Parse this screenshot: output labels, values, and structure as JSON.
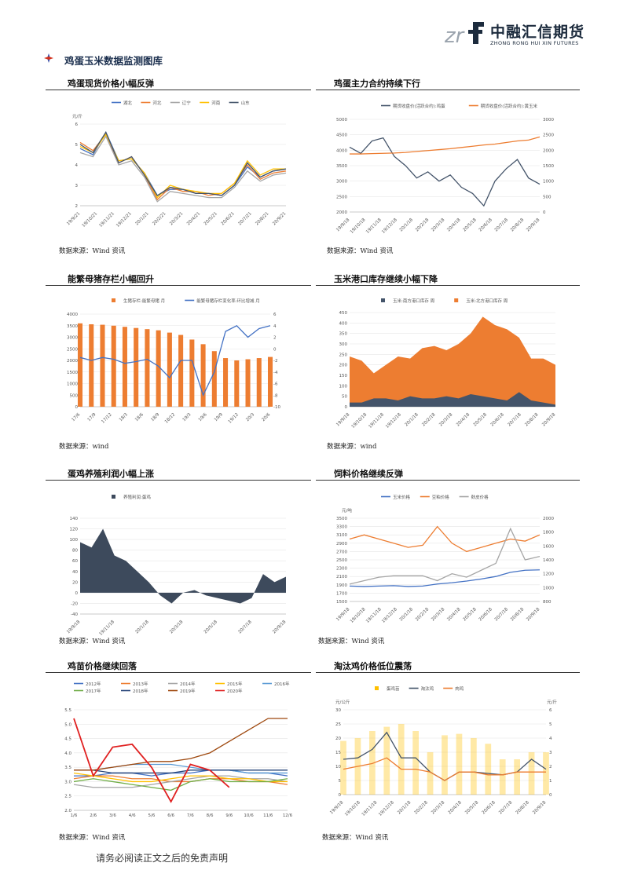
{
  "header": {
    "logo_name": "中融汇信期货",
    "logo_en": "ZHONG RONG HUI XIN FUTURES",
    "logo_icon": "zrf-logo",
    "brand_color": "#1c2b3d"
  },
  "section_title": "鸡蛋玉米数据监测图库",
  "charts": {
    "c1": {
      "title": "鸡蛋现货价格小幅反弹",
      "source": "数据来源：Wind 资讯"
    },
    "c2": {
      "title": "鸡蛋主力合约持续下行",
      "source": "数据来源：Wind 资讯"
    },
    "c3": {
      "title": "能繁母猪存栏小幅回升",
      "source": "数据来源：wind"
    },
    "c4": {
      "title": "玉米港口库存继续小幅下降",
      "source": "数据来源：wind"
    },
    "c5": {
      "title": "蛋鸡养殖利润小幅上涨",
      "source": "数据来源：Wind 资讯"
    },
    "c6": {
      "title": "饲料价格继续反弹",
      "source": "数据来源：Wind 资讯"
    },
    "c7": {
      "title": "鸡苗价格继续回落",
      "source": "数据来源：Wind 资讯"
    },
    "c8": {
      "title": "淘汰鸡价格低位震荡",
      "source": "数据来源：Wind 资讯"
    }
  },
  "footer": "请务必阅读正文之后的免责声明",
  "chart_data": [
    {
      "id": "c1",
      "type": "line",
      "ylabel": "元/斤",
      "ylim": [
        2,
        6
      ],
      "yticks": [
        "2",
        "3",
        "4",
        "5",
        "6"
      ],
      "xticks": [
        "19/9/21",
        "19/10/21",
        "19/11/21",
        "19/12/21",
        "20/1/21",
        "20/2/21",
        "20/3/21",
        "20/4/21",
        "20/5/21",
        "20/6/21",
        "20/7/21",
        "20/8/21",
        "20/9/21"
      ],
      "series": [
        {
          "name": "湖北",
          "color": "#4472c4",
          "values": [
            4.8,
            4.5,
            5.6,
            4.2,
            4.3,
            3.6,
            2.5,
            2.8,
            2.8,
            2.6,
            2.6,
            2.5,
            3.0,
            3.9,
            3.4,
            3.7,
            3.8
          ]
        },
        {
          "name": "河北",
          "color": "#ed7d31",
          "values": [
            5.1,
            4.7,
            5.5,
            4.1,
            4.4,
            3.5,
            2.3,
            2.9,
            2.7,
            2.7,
            2.5,
            2.6,
            3.1,
            4.0,
            3.3,
            3.6,
            3.7
          ]
        },
        {
          "name": "辽宁",
          "color": "#a5a5a5",
          "values": [
            4.6,
            4.4,
            5.4,
            4.0,
            4.2,
            3.4,
            2.2,
            2.7,
            2.6,
            2.5,
            2.4,
            2.4,
            2.9,
            3.7,
            3.2,
            3.5,
            3.6
          ]
        },
        {
          "name": "河南",
          "color": "#ffc000",
          "values": [
            4.9,
            4.6,
            5.5,
            4.2,
            4.3,
            3.6,
            2.4,
            3.0,
            2.8,
            2.7,
            2.6,
            2.6,
            3.1,
            4.2,
            3.5,
            3.8,
            3.8
          ]
        },
        {
          "name": "山东",
          "color": "#44546a",
          "values": [
            5.0,
            4.6,
            5.6,
            4.1,
            4.4,
            3.5,
            2.5,
            2.9,
            2.8,
            2.6,
            2.6,
            2.5,
            3.0,
            4.1,
            3.4,
            3.7,
            3.8
          ]
        }
      ]
    },
    {
      "id": "c2",
      "type": "line",
      "ylim": [
        2000,
        5000
      ],
      "yticks": [
        "2000",
        "2500",
        "3000",
        "3500",
        "4000",
        "4500",
        "5000"
      ],
      "y2lim": [
        0,
        3000
      ],
      "y2ticks": [
        "0",
        "500",
        "1000",
        "1500",
        "2000",
        "2500",
        "3000"
      ],
      "xticks": [
        "19/9/18",
        "19/10/18",
        "19/11/18",
        "19/12/18",
        "20/1/18",
        "20/2/18",
        "20/3/18",
        "20/4/18",
        "20/5/18",
        "20/6/18",
        "20/7/18",
        "20/8/18",
        "20/9/18"
      ],
      "series": [
        {
          "name": "期货收盘价(活跃合约):鸡蛋",
          "color": "#44546a",
          "values": [
            4100,
            3900,
            4300,
            4400,
            3800,
            3500,
            3100,
            3300,
            3000,
            3200,
            2800,
            2600,
            2200,
            3000,
            3400,
            3700,
            3100,
            2900
          ]
        },
        {
          "name": "期货收盘价(活跃合约):黄玉米",
          "color": "#ed7d31",
          "axis": "right",
          "values": [
            1880,
            1880,
            1890,
            1900,
            1910,
            1930,
            1960,
            1990,
            2020,
            2050,
            2090,
            2130,
            2170,
            2200,
            2250,
            2300,
            2330,
            2430
          ]
        }
      ]
    },
    {
      "id": "c3",
      "type": "bar",
      "ylim": [
        0,
        4000
      ],
      "yticks": [
        "0",
        "500",
        "1000",
        "1500",
        "2000",
        "2500",
        "3000",
        "3500",
        "4000"
      ],
      "y2lim": [
        -10,
        6
      ],
      "y2ticks": [
        "-10",
        "-8",
        "-6",
        "-4",
        "-2",
        "0",
        "2",
        "4",
        "6"
      ],
      "xticks": [
        "17/6",
        "17/9",
        "17/12",
        "18/3",
        "18/6",
        "18/9",
        "18/12",
        "19/3",
        "19/6",
        "19/9",
        "19/12",
        "20/3",
        "20/6"
      ],
      "series": [
        {
          "name": "生猪存栏:能繁母猪 月",
          "color": "#ed7d31",
          "values": [
            3600,
            3560,
            3540,
            3500,
            3450,
            3400,
            3350,
            3300,
            3200,
            3100,
            2900,
            2700,
            2400,
            2100,
            2000,
            2050,
            2100,
            2150
          ]
        },
        {
          "name": "能繁母猪存栏变化率:环比增减 月",
          "color": "#4472c4",
          "axis": "right",
          "values": [
            -1.5,
            -2,
            -1.5,
            -1.8,
            -2.5,
            -2.2,
            -1.8,
            -3,
            -5,
            -2,
            -2,
            -8,
            -4,
            3,
            4,
            2,
            3.5,
            4
          ]
        }
      ]
    },
    {
      "id": "c4",
      "type": "area",
      "ylim": [
        0,
        450
      ],
      "yticks": [
        "0",
        "50",
        "100",
        "150",
        "200",
        "250",
        "300",
        "350",
        "400",
        "450"
      ],
      "xticks": [
        "19/9/18",
        "19/10/18",
        "19/11/18",
        "19/12/18",
        "20/1/18",
        "20/2/18",
        "20/3/18",
        "20/4/18",
        "20/5/18",
        "20/6/18",
        "20/7/18",
        "20/8/18",
        "20/9/18"
      ],
      "series": [
        {
          "name": "玉米:南方港口库存 周",
          "color": "#44546a",
          "values": [
            20,
            20,
            40,
            40,
            30,
            50,
            40,
            40,
            50,
            40,
            60,
            50,
            40,
            30,
            70,
            30,
            20,
            10
          ]
        },
        {
          "name": "玉米:北方港口库存 周",
          "color": "#ed7d31",
          "values": [
            240,
            220,
            160,
            200,
            240,
            230,
            280,
            290,
            270,
            300,
            350,
            430,
            390,
            370,
            330,
            230,
            230,
            200
          ]
        }
      ]
    },
    {
      "id": "c5",
      "type": "area",
      "ylim": [
        -40,
        140
      ],
      "yticks": [
        "-40",
        "-20",
        "0",
        "20",
        "40",
        "60",
        "80",
        "100",
        "120",
        "140"
      ],
      "xticks": [
        "19/9/18",
        "19/11/18",
        "20/1/18",
        "20/3/18",
        "20/5/18",
        "20/7/18",
        "20/9/18"
      ],
      "series": [
        {
          "name": "养殖利润:蛋鸡",
          "color": "#3d4a5c",
          "values": [
            95,
            85,
            120,
            70,
            60,
            40,
            20,
            -5,
            -20,
            0,
            5,
            -5,
            -10,
            -15,
            -20,
            -10,
            35,
            20,
            30
          ]
        }
      ]
    },
    {
      "id": "c6",
      "type": "line",
      "ylabel": "元/吨",
      "ylim": [
        1500,
        3500
      ],
      "yticks": [
        "1500",
        "1700",
        "1900",
        "2100",
        "2300",
        "2500",
        "2700",
        "2900",
        "3100",
        "3300",
        "3500"
      ],
      "y2lim": [
        800,
        2000
      ],
      "y2ticks": [
        "800",
        "1000",
        "1200",
        "1400",
        "1600",
        "1800",
        "2000"
      ],
      "xticks": [
        "19/9/18",
        "19/10/18",
        "19/11/18",
        "19/12/18",
        "20/1/18",
        "20/2/18",
        "20/3/18",
        "20/4/18",
        "20/5/18",
        "20/6/18",
        "20/7/18",
        "20/8/18",
        "20/9/18"
      ],
      "series": [
        {
          "name": "玉米价格",
          "color": "#4472c4",
          "values": [
            1870,
            1860,
            1870,
            1880,
            1860,
            1870,
            1920,
            1950,
            1990,
            2040,
            2100,
            2200,
            2250,
            2260
          ]
        },
        {
          "name": "豆粕价格",
          "color": "#ed7d31",
          "values": [
            3000,
            3100,
            3000,
            2900,
            2800,
            2850,
            3300,
            2900,
            2700,
            2800,
            2900,
            3000,
            2950,
            3100
          ]
        },
        {
          "name": "麸皮价格",
          "color": "#a5a5a5",
          "axis": "right",
          "values": [
            1050,
            1100,
            1150,
            1170,
            1170,
            1170,
            1100,
            1200,
            1150,
            1250,
            1350,
            1850,
            1400,
            1450
          ]
        }
      ]
    },
    {
      "id": "c7",
      "type": "line",
      "ylim": [
        2.0,
        5.5
      ],
      "yticks": [
        "2.0",
        "2.5",
        "3.0",
        "3.5",
        "4.0",
        "4.5",
        "5.0",
        "5.5"
      ],
      "xticks": [
        "1/6",
        "2/6",
        "3/6",
        "4/6",
        "5/6",
        "6/6",
        "7/6",
        "8/6",
        "9/6",
        "10/6",
        "11/6",
        "12/6"
      ],
      "series": [
        {
          "name": "2012年",
          "color": "#4472c4",
          "values": [
            3.2,
            3.2,
            3.3,
            3.3,
            3.2,
            3.3,
            3.3,
            3.4,
            3.4,
            3.3,
            3.3,
            3.2
          ]
        },
        {
          "name": "2013年",
          "color": "#ed7d31",
          "values": [
            3.1,
            3.2,
            3.2,
            3.1,
            3.1,
            3.0,
            3.0,
            3.1,
            3.1,
            3.0,
            3.0,
            2.9
          ]
        },
        {
          "name": "2014年",
          "color": "#a5a5a5",
          "values": [
            2.9,
            2.8,
            2.8,
            2.8,
            2.9,
            3.0,
            3.1,
            3.2,
            3.2,
            3.1,
            3.1,
            3.0
          ]
        },
        {
          "name": "2015年",
          "color": "#ffc000",
          "values": [
            3.3,
            3.2,
            3.1,
            3.0,
            3.0,
            3.1,
            3.2,
            3.2,
            3.1,
            3.1,
            3.0,
            3.0
          ]
        },
        {
          "name": "2016年",
          "color": "#5b9bd5",
          "values": [
            3.4,
            3.4,
            3.5,
            3.6,
            3.6,
            3.6,
            3.5,
            3.4,
            3.4,
            3.3,
            3.3,
            3.3
          ]
        },
        {
          "name": "2017年",
          "color": "#70ad47",
          "values": [
            3.0,
            3.1,
            3.0,
            2.9,
            2.8,
            2.7,
            3.0,
            3.1,
            3.0,
            3.0,
            3.0,
            3.1
          ]
        },
        {
          "name": "2018年",
          "color": "#264478",
          "values": [
            3.4,
            3.4,
            3.3,
            3.3,
            3.3,
            3.3,
            3.4,
            3.4,
            3.4,
            3.4,
            3.4,
            3.4
          ]
        },
        {
          "name": "2019年",
          "color": "#9e480e",
          "values": [
            3.4,
            3.4,
            3.5,
            3.6,
            3.7,
            3.7,
            3.8,
            4.0,
            4.4,
            4.8,
            5.2,
            5.2
          ]
        },
        {
          "name": "2020年",
          "color": "#e02020",
          "values": [
            5.2,
            3.2,
            4.2,
            4.3,
            3.5,
            2.3,
            3.6,
            3.4,
            2.8
          ]
        }
      ]
    },
    {
      "id": "c8",
      "type": "bar",
      "ylabel": "元/公斤",
      "y2label": "元/斤",
      "ylim": [
        0,
        30
      ],
      "yticks": [
        "0",
        "5",
        "10",
        "15",
        "20",
        "25",
        "30"
      ],
      "y2lim": [
        0,
        6
      ],
      "y2ticks": [
        "0",
        "1",
        "2",
        "3",
        "4",
        "5",
        "6"
      ],
      "xticks": [
        "19/9/18",
        "19/10/18",
        "19/11/18",
        "19/12/18",
        "20/1/18",
        "20/2/18",
        "20/3/18",
        "20/4/18",
        "20/5/18",
        "20/6/18",
        "20/7/18",
        "20/8/18",
        "20/9/18"
      ],
      "series": [
        {
          "name": "蛋鸡苗",
          "color": "#ffc000",
          "axis": "right",
          "values": [
            3.8,
            4.0,
            4.5,
            4.8,
            5.0,
            4.5,
            3.0,
            4.2,
            4.3,
            4.0,
            3.6,
            2.5,
            2.5,
            3.0,
            3.0
          ]
        },
        {
          "name": "淘汰鸡",
          "color": "#44546a",
          "values": [
            12.5,
            13,
            16,
            22,
            13,
            13,
            8,
            5,
            8,
            8,
            7.5,
            7,
            8,
            12.5,
            9
          ]
        },
        {
          "name": "肉鸡",
          "color": "#ed7d31",
          "values": [
            9,
            10,
            11,
            13,
            9,
            9,
            8,
            5,
            8,
            8,
            7,
            7,
            8,
            8,
            8
          ]
        }
      ]
    }
  ]
}
